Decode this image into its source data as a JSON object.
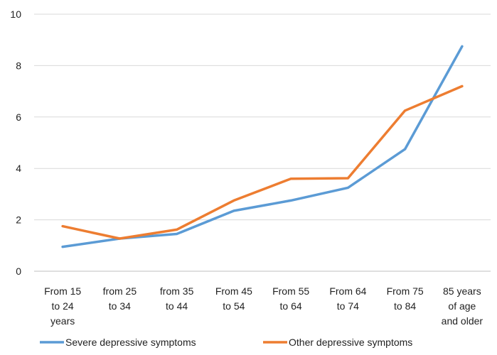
{
  "chart_data": {
    "type": "line",
    "title": "",
    "xlabel": "",
    "ylabel": "",
    "ylim": [
      0,
      10
    ],
    "yticks": [
      "0",
      "2",
      "4",
      "6",
      "8",
      "10"
    ],
    "grid": true,
    "legend": "bottom",
    "categories": [
      [
        "From 15",
        "to 24",
        "years"
      ],
      [
        "from 25",
        "to 34"
      ],
      [
        "from 35",
        "to 44"
      ],
      [
        "From 45",
        "to 54"
      ],
      [
        "From 55",
        "to 64"
      ],
      [
        "From 64",
        "to 74"
      ],
      [
        "From 75",
        "to 84"
      ],
      [
        "85 years",
        "of age",
        "and older"
      ]
    ],
    "series": [
      {
        "name": "Severe depressive symptoms",
        "color": "#5B9BD5",
        "values": [
          0.95,
          1.27,
          1.45,
          2.35,
          2.75,
          3.25,
          4.75,
          8.75
        ]
      },
      {
        "name": "Other depressive symptoms",
        "color": "#ED7D31",
        "values": [
          1.75,
          1.27,
          1.62,
          2.75,
          3.6,
          3.62,
          6.25,
          7.2
        ]
      }
    ]
  }
}
